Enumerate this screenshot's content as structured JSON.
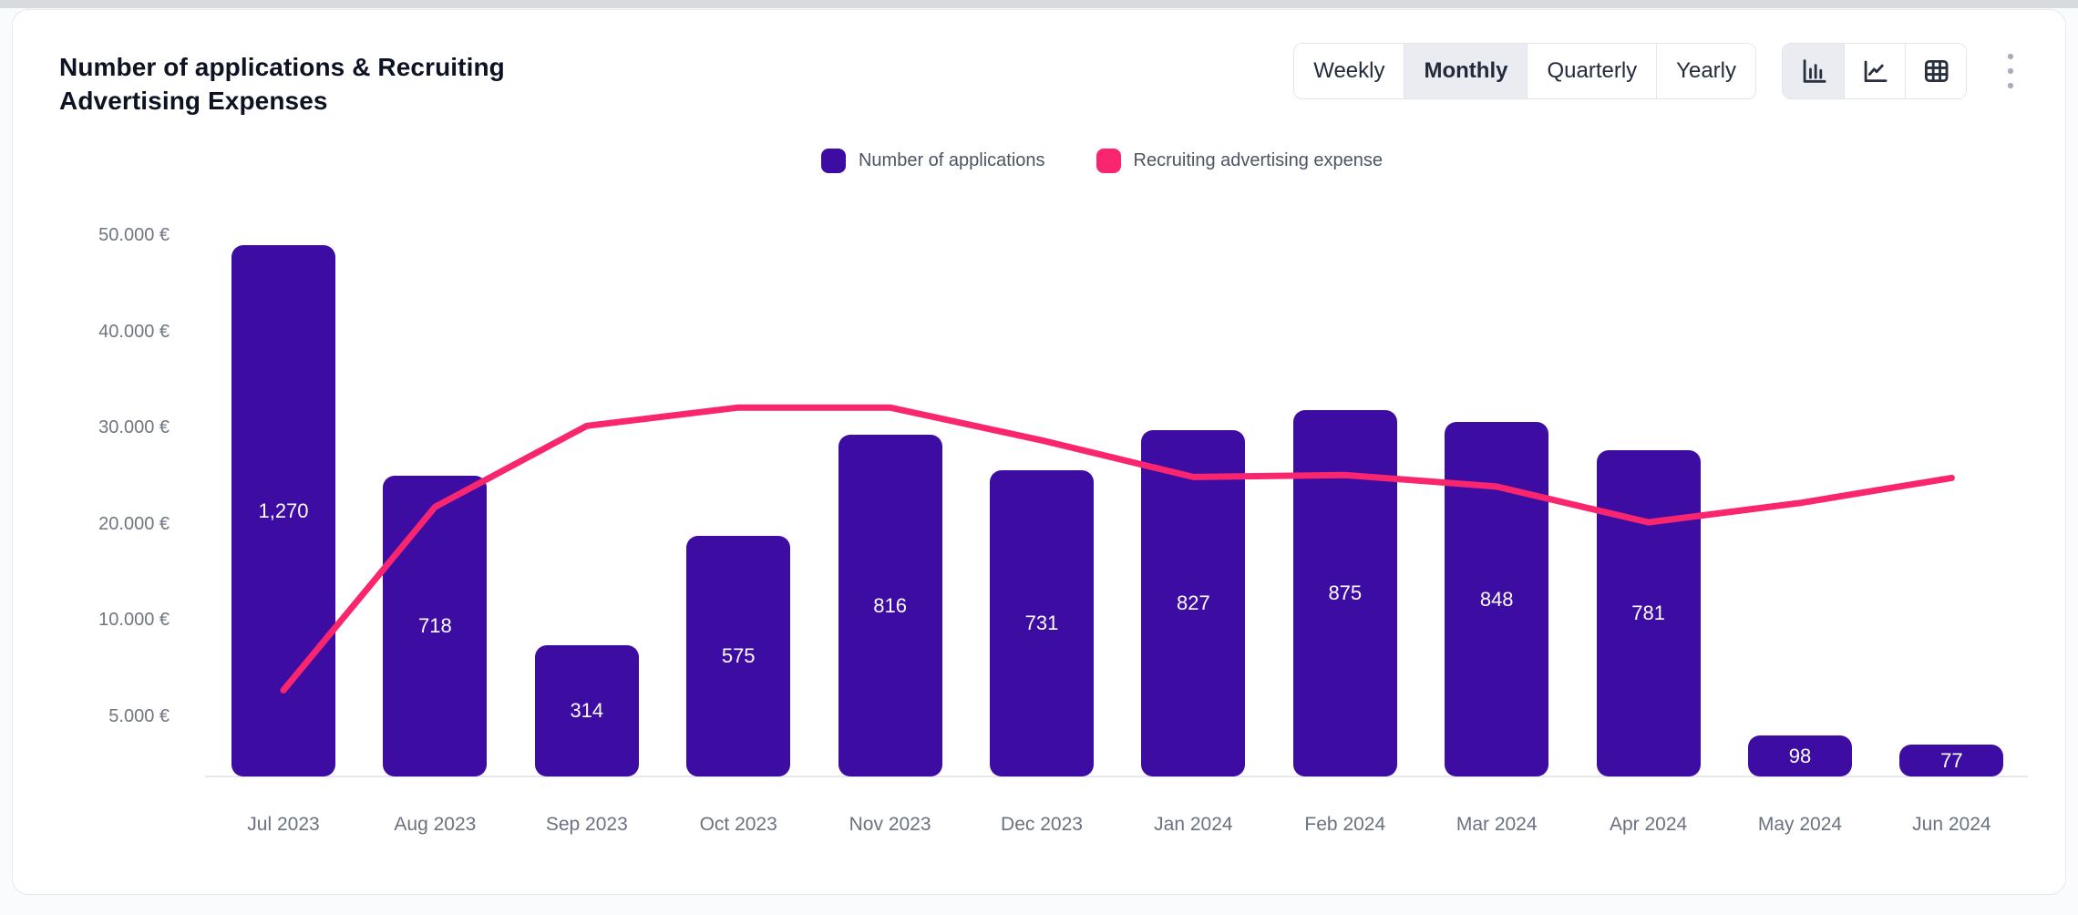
{
  "card": {
    "title": "Number of applications & Recruiting Advertising Expenses"
  },
  "controls": {
    "period_tabs": [
      {
        "label": "Weekly",
        "selected": false
      },
      {
        "label": "Monthly",
        "selected": true
      },
      {
        "label": "Quarterly",
        "selected": false
      },
      {
        "label": "Yearly",
        "selected": false
      }
    ],
    "view_toggles": [
      {
        "icon": "bar-chart-icon",
        "name": "bar-view",
        "selected": true
      },
      {
        "icon": "line-chart-icon",
        "name": "line-view",
        "selected": false
      },
      {
        "icon": "table-icon",
        "name": "table-view",
        "selected": false
      }
    ],
    "more_menu_icon": "kebab-menu-icon"
  },
  "legend": [
    {
      "label": "Number of applications",
      "color": "#3d0da3"
    },
    {
      "label": "Recruiting advertising expense",
      "color": "#f9256e"
    }
  ],
  "chart_data": {
    "type": "bar",
    "title": "Number of applications & Recruiting Advertising Expenses",
    "categories": [
      "Jul 2023",
      "Aug 2023",
      "Sep 2023",
      "Oct 2023",
      "Nov 2023",
      "Dec 2023",
      "Jan 2024",
      "Feb 2024",
      "Mar 2024",
      "Apr 2024",
      "May 2024",
      "Jun 2024"
    ],
    "series": [
      {
        "name": "Number of applications",
        "type": "bar",
        "color": "#3d0da3",
        "values": [
          1270,
          718,
          314,
          575,
          816,
          731,
          827,
          875,
          848,
          781,
          98,
          77
        ],
        "value_labels": [
          "1,270",
          "718",
          "314",
          "575",
          "816",
          "731",
          "827",
          "875",
          "848",
          "781",
          "98",
          "77"
        ]
      },
      {
        "name": "Recruiting advertising expense",
        "type": "line",
        "color": "#f9256e",
        "values_eur": [
          6400,
          21800,
          30200,
          32100,
          32100,
          28700,
          24900,
          25100,
          23900,
          20200,
          22200,
          24800
        ]
      }
    ],
    "y_axis": {
      "side": "left",
      "currency": "EUR",
      "tick_labels": [
        "50.000 €",
        "40.000 €",
        "30.000 €",
        "20.000 €",
        "10.000 €",
        "5.000 €"
      ],
      "grid": false
    },
    "legend_position": "top-center"
  }
}
